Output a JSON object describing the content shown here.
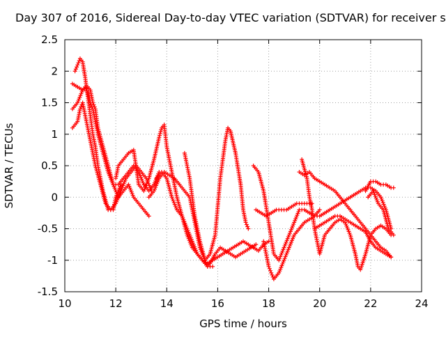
{
  "chart_data": {
    "type": "scatter",
    "title": "Day 307 of 2016, Sidereal Day-to-day VTEC variation (SDTVAR) for receiver s",
    "xlabel": "GPS time / hours",
    "ylabel": "SDTVAR / TECUs",
    "xlim": [
      10,
      24
    ],
    "ylim": [
      -1.5,
      2.5
    ],
    "xticks": [
      "10",
      "12",
      "14",
      "16",
      "18",
      "20",
      "22",
      "24"
    ],
    "yticks": [
      "-1.5",
      "-1",
      "-0.5",
      "0",
      "0.5",
      "1",
      "1.5",
      "2",
      "2.5"
    ],
    "grid": true,
    "marker": "+",
    "color": "#ff0000",
    "series": [
      {
        "x": [
          10.4,
          10.5,
          10.6,
          10.7,
          10.8,
          10.9,
          11.0,
          11.1,
          11.2,
          11.3,
          11.5,
          11.7,
          11.9,
          12.0,
          12.2
        ],
        "y": [
          2.0,
          2.1,
          2.2,
          2.15,
          1.9,
          1.6,
          1.3,
          1.0,
          0.8,
          0.5,
          0.1,
          -0.2,
          -0.2,
          0.0,
          0.2
        ]
      },
      {
        "x": [
          10.3,
          10.4,
          10.5,
          10.6,
          10.7,
          10.8,
          10.9,
          11.0,
          11.1,
          11.2,
          11.4,
          11.6,
          11.8,
          12.0,
          12.2,
          12.4,
          12.6,
          12.8,
          13.0,
          13.2,
          13.4
        ],
        "y": [
          1.1,
          1.15,
          1.2,
          1.4,
          1.5,
          1.3,
          1.1,
          0.9,
          0.7,
          0.5,
          0.2,
          -0.1,
          -0.2,
          -0.1,
          0.1,
          0.3,
          0.4,
          0.5,
          0.4,
          0.3,
          0.1
        ]
      },
      {
        "x": [
          10.3,
          10.5,
          10.7,
          10.8,
          10.9,
          11.0,
          11.1,
          11.2,
          11.3,
          11.5,
          11.7,
          11.9,
          12.1,
          12.3,
          12.5,
          12.7,
          12.9,
          13.1,
          13.3,
          13.5,
          13.7
        ],
        "y": [
          1.4,
          1.5,
          1.7,
          1.75,
          1.65,
          1.5,
          1.4,
          1.2,
          1.0,
          0.7,
          0.4,
          0.2,
          0.2,
          0.3,
          0.4,
          0.5,
          0.4,
          0.2,
          0.1,
          0.2,
          0.4
        ]
      },
      {
        "x": [
          10.3,
          10.5,
          10.7,
          10.9,
          11.0,
          11.1,
          11.2,
          11.3,
          11.5,
          11.7,
          11.9,
          12.1,
          12.3,
          12.5,
          12.7,
          12.9,
          13.1,
          13.3
        ],
        "y": [
          1.8,
          1.75,
          1.7,
          1.75,
          1.7,
          1.5,
          1.4,
          1.1,
          0.8,
          0.5,
          0.2,
          0.0,
          0.1,
          0.2,
          0.0,
          -0.1,
          -0.2,
          -0.3
        ]
      },
      {
        "x": [
          12.0,
          12.1,
          12.3,
          12.5,
          12.7,
          12.9,
          13.1,
          13.3,
          13.5,
          13.7,
          13.8,
          13.9,
          14.0,
          14.2,
          14.4,
          14.6,
          14.8,
          15.0,
          15.2,
          15.4,
          15.6,
          15.8
        ],
        "y": [
          0.3,
          0.5,
          0.6,
          0.7,
          0.75,
          0.2,
          0.1,
          0.3,
          0.6,
          0.95,
          1.1,
          1.15,
          0.8,
          0.4,
          0.0,
          -0.3,
          -0.6,
          -0.8,
          -0.9,
          -1.0,
          -1.1,
          -1.1
        ]
      },
      {
        "x": [
          13.3,
          13.5,
          13.7,
          13.9,
          14.1,
          14.3,
          14.5,
          14.7,
          14.9,
          15.1,
          15.3,
          15.5,
          15.7,
          15.9,
          16.1,
          16.3,
          16.4,
          16.5,
          16.7,
          16.9,
          17.0,
          17.1,
          17.2
        ],
        "y": [
          0.0,
          0.1,
          0.3,
          0.4,
          0.35,
          0.3,
          0.2,
          0.1,
          0.0,
          -0.4,
          -0.8,
          -1.0,
          -0.9,
          -0.6,
          0.3,
          0.9,
          1.1,
          1.05,
          0.7,
          0.2,
          -0.2,
          -0.4,
          -0.5
        ]
      },
      {
        "x": [
          13.6,
          13.8,
          14.0,
          14.2,
          14.4,
          14.6,
          14.8,
          15.0,
          15.2,
          15.4,
          15.6,
          15.8,
          16.0,
          16.2,
          16.4,
          16.6,
          16.8,
          17.0,
          17.2,
          17.4,
          17.6,
          17.8,
          18.0
        ],
        "y": [
          0.3,
          0.4,
          0.3,
          0.0,
          -0.2,
          -0.3,
          -0.5,
          -0.7,
          -0.9,
          -1.0,
          -1.05,
          -1.0,
          -0.95,
          -0.9,
          -0.85,
          -0.8,
          -0.75,
          -0.7,
          -0.75,
          -0.8,
          -0.85,
          -0.75,
          -0.7
        ]
      },
      {
        "x": [
          14.7,
          14.8,
          14.9,
          15.0,
          15.1,
          15.3,
          15.5,
          15.6,
          15.7,
          15.9,
          16.1,
          16.3,
          16.5,
          16.7,
          16.9,
          17.1,
          17.3,
          17.5
        ],
        "y": [
          0.7,
          0.5,
          0.3,
          0.0,
          -0.3,
          -0.7,
          -1.0,
          -1.1,
          -1.05,
          -0.9,
          -0.8,
          -0.85,
          -0.9,
          -0.95,
          -0.9,
          -0.85,
          -0.8,
          -0.75
        ]
      },
      {
        "x": [
          17.4,
          17.6,
          17.8,
          18.0,
          18.2,
          18.4,
          18.6,
          18.8,
          19.0,
          19.2,
          19.4,
          19.6,
          19.8,
          20.0
        ],
        "y": [
          0.5,
          0.4,
          0.1,
          -0.4,
          -0.9,
          -1.0,
          -0.8,
          -0.6,
          -0.4,
          -0.2,
          -0.2,
          -0.25,
          -0.3,
          -0.2
        ]
      },
      {
        "x": [
          17.5,
          17.7,
          17.9,
          18.1,
          18.3,
          18.5,
          18.7,
          18.9,
          19.1,
          19.3,
          19.5,
          19.7
        ],
        "y": [
          -0.2,
          -0.25,
          -0.3,
          -0.25,
          -0.2,
          -0.2,
          -0.2,
          -0.15,
          -0.1,
          -0.1,
          -0.1,
          -0.1
        ]
      },
      {
        "x": [
          17.8,
          18.0,
          18.1,
          18.2,
          18.4,
          18.6,
          18.8,
          19.0,
          19.2,
          19.4,
          19.6,
          19.8,
          20.0,
          20.2,
          20.4,
          20.6,
          20.8,
          21.0,
          21.2,
          21.4,
          21.6,
          21.8,
          22.0,
          22.2,
          22.4,
          22.6,
          22.8
        ],
        "y": [
          -0.7,
          -1.1,
          -1.2,
          -1.3,
          -1.2,
          -1.0,
          -0.8,
          -0.6,
          -0.5,
          -0.4,
          -0.35,
          -0.3,
          -0.3,
          -0.25,
          -0.2,
          -0.15,
          -0.1,
          -0.05,
          0.0,
          0.05,
          0.1,
          0.15,
          0.15,
          0.1,
          0.0,
          -0.2,
          -0.5
        ]
      },
      {
        "x": [
          19.3,
          19.5,
          19.6,
          19.7,
          19.8,
          19.9,
          20.0,
          20.2,
          20.4,
          20.6,
          20.8,
          21.0,
          21.2,
          21.4,
          21.5,
          21.6,
          21.8,
          22.0,
          22.2,
          22.4,
          22.6,
          22.8
        ],
        "y": [
          0.6,
          0.3,
          0.0,
          -0.2,
          -0.5,
          -0.7,
          -0.9,
          -0.6,
          -0.5,
          -0.4,
          -0.35,
          -0.4,
          -0.6,
          -0.9,
          -1.1,
          -1.15,
          -0.9,
          -0.6,
          -0.5,
          -0.45,
          -0.5,
          -0.6
        ]
      },
      {
        "x": [
          19.2,
          19.4,
          19.6,
          19.8,
          20.0,
          20.2,
          20.4,
          20.6,
          20.8,
          21.0,
          21.2,
          21.4,
          21.6,
          21.8,
          22.0,
          22.2,
          22.4,
          22.6,
          22.8
        ],
        "y": [
          0.4,
          0.35,
          0.4,
          0.3,
          0.25,
          0.2,
          0.15,
          0.1,
          0.0,
          -0.1,
          -0.2,
          -0.3,
          -0.4,
          -0.5,
          -0.6,
          -0.7,
          -0.8,
          -0.85,
          -0.95
        ]
      },
      {
        "x": [
          19.8,
          20.0,
          20.2,
          20.4,
          20.6,
          20.8,
          21.0,
          21.2,
          21.4,
          21.6,
          21.8,
          22.0,
          22.2,
          22.4,
          22.6,
          22.8
        ],
        "y": [
          -0.5,
          -0.45,
          -0.4,
          -0.35,
          -0.3,
          -0.3,
          -0.35,
          -0.4,
          -0.45,
          -0.5,
          -0.55,
          -0.7,
          -0.8,
          -0.85,
          -0.9,
          -0.95
        ]
      },
      {
        "x": [
          21.8,
          22.0,
          22.2,
          22.4,
          22.6,
          22.8,
          22.9
        ],
        "y": [
          0.1,
          0.25,
          0.25,
          0.2,
          0.2,
          0.15,
          0.15
        ]
      },
      {
        "x": [
          21.9,
          22.1,
          22.3,
          22.5,
          22.7,
          22.9
        ],
        "y": [
          0.0,
          0.1,
          -0.1,
          -0.2,
          -0.5,
          -0.6
        ]
      }
    ]
  }
}
